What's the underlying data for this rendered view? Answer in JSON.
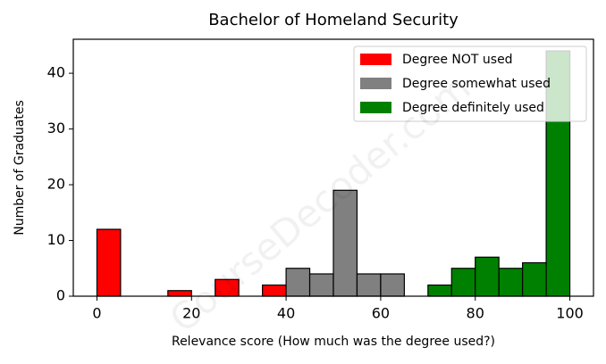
{
  "chart_data": {
    "type": "histogram",
    "title": "Bachelor of Homeland Security",
    "x_label": "Relevance score (How much was the degree used?)",
    "y_label": "Number of Graduates",
    "watermark": "CourseDecoder.com",
    "bins": [
      0,
      5,
      10,
      15,
      20,
      25,
      30,
      35,
      40,
      45,
      50,
      55,
      60,
      65,
      70,
      75,
      80,
      85,
      90,
      95,
      100
    ],
    "series": [
      {
        "name": "Degree NOT used",
        "color": "#ff0000",
        "values": [
          12,
          0,
          0,
          1,
          0,
          3,
          0,
          2,
          0,
          0,
          0,
          0,
          0,
          0,
          0,
          0,
          0,
          0,
          0,
          0
        ]
      },
      {
        "name": "Degree somewhat used",
        "color": "#808080",
        "values": [
          0,
          0,
          0,
          0,
          0,
          0,
          0,
          0,
          5,
          4,
          19,
          4,
          4,
          0,
          0,
          0,
          0,
          0,
          0,
          0
        ]
      },
      {
        "name": "Degree definitely used",
        "color": "#008000",
        "values": [
          0,
          0,
          0,
          0,
          0,
          0,
          0,
          0,
          0,
          0,
          0,
          0,
          0,
          0,
          2,
          5,
          7,
          5,
          6,
          44
        ]
      }
    ],
    "xlim": [
      -5,
      105
    ],
    "xticks": [
      0,
      20,
      40,
      60,
      80,
      100
    ],
    "ylim": [
      0,
      46.1
    ],
    "yticks": [
      0,
      10,
      20,
      30,
      40
    ],
    "legend": "upper right"
  }
}
